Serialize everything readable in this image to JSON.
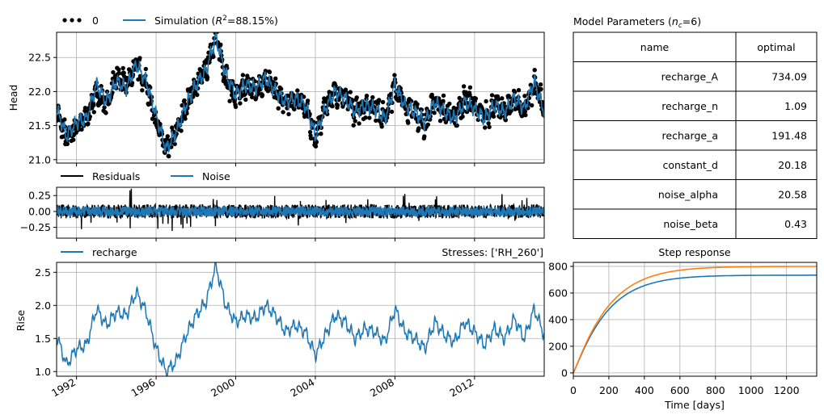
{
  "chart_data": [
    {
      "type": "line",
      "ylabel": "Head",
      "legend": [
        "0",
        "Simulation (R²=88.15%)"
      ],
      "legend_placement": "top-left, above axes",
      "ylim": [
        20.95,
        22.87
      ],
      "xlim": [
        1991.0,
        2015.5
      ],
      "yticks": [
        "21.0",
        "21.5",
        "22.0",
        "22.5"
      ],
      "grid": true,
      "series": [
        {
          "name": "0",
          "style": "black dots",
          "color": "#000000",
          "x": [
            1991.0,
            1991.5,
            1992.0,
            1992.5,
            1993.0,
            1993.5,
            1994.0,
            1994.5,
            1995.0,
            1995.5,
            1996.0,
            1996.5,
            1997.0,
            1997.5,
            1998.0,
            1998.5,
            1999.0,
            1999.5,
            2000.0,
            2000.5,
            2001.0,
            2001.5,
            2002.0,
            2002.5,
            2003.0,
            2003.5,
            2004.0,
            2004.5,
            2005.0,
            2005.5,
            2006.0,
            2006.5,
            2007.0,
            2007.5,
            2008.0,
            2008.5,
            2009.0,
            2009.5,
            2010.0,
            2010.5,
            2011.0,
            2011.5,
            2012.0,
            2012.5,
            2013.0,
            2013.5,
            2014.0,
            2014.5,
            2015.0,
            2015.5
          ],
          "y": [
            21.7,
            21.3,
            21.5,
            21.6,
            22.0,
            21.8,
            22.2,
            22.1,
            22.4,
            22.1,
            21.6,
            21.1,
            21.4,
            21.8,
            22.1,
            22.3,
            22.85,
            22.2,
            21.9,
            22.1,
            22.0,
            22.2,
            22.0,
            21.8,
            21.9,
            21.8,
            21.3,
            21.8,
            22.0,
            21.9,
            21.7,
            21.8,
            21.8,
            21.6,
            22.1,
            21.8,
            21.7,
            21.5,
            21.9,
            21.7,
            21.6,
            21.9,
            21.8,
            21.6,
            21.8,
            21.7,
            21.9,
            21.7,
            22.1,
            21.8
          ]
        },
        {
          "name": "Simulation (R²=88.15%)",
          "color": "#1f77b4",
          "x": [
            1991.0,
            1991.5,
            1992.0,
            1992.5,
            1993.0,
            1993.5,
            1994.0,
            1994.5,
            1995.0,
            1995.5,
            1996.0,
            1996.5,
            1997.0,
            1997.5,
            1998.0,
            1998.5,
            1999.0,
            1999.5,
            2000.0,
            2000.5,
            2001.0,
            2001.5,
            2002.0,
            2002.5,
            2003.0,
            2003.5,
            2004.0,
            2004.5,
            2005.0,
            2005.5,
            2006.0,
            2006.5,
            2007.0,
            2007.5,
            2008.0,
            2008.5,
            2009.0,
            2009.5,
            2010.0,
            2010.5,
            2011.0,
            2011.5,
            2012.0,
            2012.5,
            2013.0,
            2013.5,
            2014.0,
            2014.5,
            2015.0,
            2015.5
          ],
          "y": [
            21.75,
            21.35,
            21.55,
            21.6,
            22.1,
            21.85,
            22.15,
            22.05,
            22.4,
            22.15,
            21.65,
            21.15,
            21.4,
            21.8,
            22.1,
            22.3,
            22.8,
            22.25,
            21.95,
            22.1,
            22.05,
            22.2,
            22.0,
            21.85,
            21.9,
            21.8,
            21.35,
            21.75,
            22.0,
            21.9,
            21.7,
            21.8,
            21.75,
            21.6,
            22.1,
            21.8,
            21.7,
            21.55,
            21.85,
            21.7,
            21.6,
            21.85,
            21.75,
            21.6,
            21.8,
            21.7,
            21.9,
            21.75,
            22.15,
            21.7
          ]
        }
      ]
    },
    {
      "type": "line",
      "legend": [
        "Residuals",
        "Noise"
      ],
      "legend_placement": "top-left, above axes",
      "ylim": [
        -0.42,
        0.38
      ],
      "xlim": [
        1991.0,
        2015.5
      ],
      "yticks": [
        "0.25",
        "0.00",
        "−0.25"
      ],
      "grid": true,
      "series": [
        {
          "name": "Residuals",
          "color": "#000000",
          "amplitude": 0.34
        },
        {
          "name": "Noise",
          "color": "#1f77b4",
          "amplitude": 0.09
        }
      ]
    },
    {
      "type": "line",
      "ylabel": "Rise",
      "title_right": "Stresses: ['RH_260']",
      "legend": [
        "recharge"
      ],
      "ylim": [
        0.93,
        2.65
      ],
      "xlim": [
        1991.0,
        2015.5
      ],
      "yticks": [
        "1.0",
        "1.5",
        "2.0",
        "2.5"
      ],
      "xticks": [
        "1992",
        "1996",
        "2000",
        "2004",
        "2008",
        "2012"
      ],
      "xtick_values": [
        1992,
        1996,
        2000,
        2004,
        2008,
        2012
      ],
      "grid": true,
      "series": [
        {
          "name": "recharge",
          "color": "#1f77b4",
          "x": [
            1991.0,
            1991.5,
            1992.0,
            1992.5,
            1993.0,
            1993.5,
            1994.0,
            1994.5,
            1995.0,
            1995.5,
            1996.0,
            1996.5,
            1997.0,
            1997.5,
            1998.0,
            1998.5,
            1999.0,
            1999.5,
            2000.0,
            2000.5,
            2001.0,
            2001.5,
            2002.0,
            2002.5,
            2003.0,
            2003.5,
            2004.0,
            2004.5,
            2005.0,
            2005.5,
            2006.0,
            2006.5,
            2007.0,
            2007.5,
            2008.0,
            2008.5,
            2009.0,
            2009.5,
            2010.0,
            2010.5,
            2011.0,
            2011.5,
            2012.0,
            2012.5,
            2013.0,
            2013.5,
            2014.0,
            2014.5,
            2015.0,
            2015.5
          ],
          "y": [
            1.55,
            1.1,
            1.35,
            1.4,
            1.95,
            1.7,
            1.9,
            1.85,
            2.2,
            1.9,
            1.35,
            1.0,
            1.15,
            1.55,
            1.85,
            2.05,
            2.6,
            2.0,
            1.75,
            1.85,
            1.8,
            2.0,
            1.85,
            1.6,
            1.7,
            1.6,
            1.25,
            1.55,
            1.85,
            1.75,
            1.5,
            1.65,
            1.6,
            1.45,
            1.95,
            1.6,
            1.5,
            1.35,
            1.75,
            1.55,
            1.45,
            1.75,
            1.6,
            1.4,
            1.65,
            1.5,
            1.8,
            1.5,
            1.95,
            1.55
          ]
        }
      ]
    },
    {
      "type": "table",
      "title": "Model Parameters (n_c=6)",
      "title_parts": {
        "prefix": "Model Parameters (",
        "var": "n",
        "sub": "c",
        "suffix": "=6)"
      },
      "columns": [
        "name",
        "optimal"
      ],
      "rows": [
        [
          "recharge_A",
          "734.09"
        ],
        [
          "recharge_n",
          "1.09"
        ],
        [
          "recharge_a",
          "191.48"
        ],
        [
          "constant_d",
          "20.18"
        ],
        [
          "noise_alpha",
          "20.58"
        ],
        [
          "noise_beta",
          "0.43"
        ]
      ]
    },
    {
      "type": "line",
      "title": "Step response",
      "xlabel": "Time [days]",
      "xlim": [
        0,
        1370
      ],
      "ylim": [
        -25,
        830
      ],
      "xticks": [
        0,
        200,
        400,
        600,
        800,
        1000,
        1200
      ],
      "yticks": [
        0,
        200,
        400,
        600,
        800
      ],
      "grid": true,
      "series": [
        {
          "color": "#1f77b4",
          "A": 734.09,
          "a": 191.48,
          "n": 1.09
        },
        {
          "color": "#ff7f0e",
          "A": 800,
          "a": 200,
          "n": 1.09
        }
      ]
    }
  ],
  "top_legend": {
    "observed_label": "0",
    "sim_label_prefix": "Simulation (",
    "sim_label_r": "R",
    "sim_label_exp": "2",
    "sim_label_suffix": "=88.15%)"
  }
}
